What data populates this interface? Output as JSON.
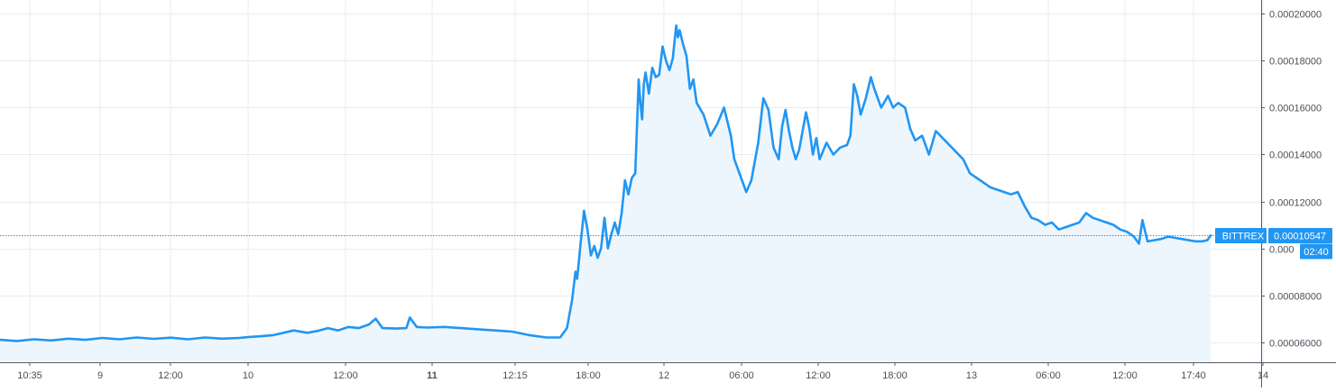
{
  "chart_data": {
    "type": "area",
    "title": "",
    "xlabel": "",
    "ylabel": "",
    "x_ticks": [
      {
        "label": "10:35",
        "bold": false
      },
      {
        "label": "9",
        "bold": false
      },
      {
        "label": "12:00",
        "bold": false
      },
      {
        "label": "10",
        "bold": false
      },
      {
        "label": "12:00",
        "bold": false
      },
      {
        "label": "11",
        "bold": true
      },
      {
        "label": "12:15",
        "bold": false
      },
      {
        "label": "18:00",
        "bold": false
      },
      {
        "label": "12",
        "bold": false
      },
      {
        "label": "06:00",
        "bold": false
      },
      {
        "label": "12:00",
        "bold": false
      },
      {
        "label": "18:00",
        "bold": false
      },
      {
        "label": "13",
        "bold": false
      },
      {
        "label": "06:00",
        "bold": false
      },
      {
        "label": "12:00",
        "bold": false
      },
      {
        "label": "17:40",
        "bold": false
      },
      {
        "label": "14",
        "bold": false
      }
    ],
    "y_ticks": [
      {
        "value": 6e-05,
        "label": "0.00006000"
      },
      {
        "value": 8e-05,
        "label": "0.00008000"
      },
      {
        "value": 0.0001,
        "label": "0.000"
      },
      {
        "value": 0.00012,
        "label": "0.00012000"
      },
      {
        "value": 0.00014,
        "label": "0.00014000"
      },
      {
        "value": 0.00016,
        "label": "0.00016000"
      },
      {
        "value": 0.00018,
        "label": "0.00018000"
      },
      {
        "value": 0.0002,
        "label": "0.00020000"
      }
    ],
    "ylim": [
      5.142e-05,
      0.00020588
    ],
    "grid": true,
    "series": [
      {
        "color": "#2196f3",
        "fill": "#eef6fd",
        "points": [
          [
            0.0,
            6.1e-05
          ],
          [
            0.5,
            6.05e-05
          ],
          [
            1.0,
            6.12e-05
          ],
          [
            1.5,
            6.07e-05
          ],
          [
            2.0,
            6.15e-05
          ],
          [
            2.5,
            6.1e-05
          ],
          [
            3.0,
            6.18e-05
          ],
          [
            3.5,
            6.12e-05
          ],
          [
            4.0,
            6.2e-05
          ],
          [
            4.5,
            6.14e-05
          ],
          [
            5.0,
            6.19e-05
          ],
          [
            5.5,
            6.12e-05
          ],
          [
            6.0,
            6.2e-05
          ],
          [
            6.5,
            6.15e-05
          ],
          [
            7.0,
            6.18e-05
          ],
          [
            7.3,
            6.22e-05
          ],
          [
            7.6,
            6.25e-05
          ],
          [
            8.0,
            6.3e-05
          ],
          [
            8.3,
            6.4e-05
          ],
          [
            8.6,
            6.5e-05
          ],
          [
            9.0,
            6.4e-05
          ],
          [
            9.3,
            6.48e-05
          ],
          [
            9.6,
            6.6e-05
          ],
          [
            9.9,
            6.5e-05
          ],
          [
            10.2,
            6.65e-05
          ],
          [
            10.5,
            6.6e-05
          ],
          [
            10.8,
            6.75e-05
          ],
          [
            11.0,
            7e-05
          ],
          [
            11.2,
            6.6e-05
          ],
          [
            11.6,
            6.58e-05
          ],
          [
            11.9,
            6.6e-05
          ],
          [
            12.0,
            7.05e-05
          ],
          [
            12.2,
            6.65e-05
          ],
          [
            12.5,
            6.62e-05
          ],
          [
            13.0,
            6.65e-05
          ],
          [
            13.5,
            6.6e-05
          ],
          [
            14.0,
            6.55e-05
          ],
          [
            14.5,
            6.5e-05
          ],
          [
            15.0,
            6.45e-05
          ],
          [
            15.5,
            6.3e-05
          ],
          [
            16.0,
            6.2e-05
          ],
          [
            16.4,
            6.2e-05
          ],
          [
            16.6,
            6.6e-05
          ],
          [
            16.75,
            7.8e-05
          ],
          [
            16.85,
            9e-05
          ],
          [
            16.9,
            8.7e-05
          ],
          [
            17.0,
            0.000102
          ],
          [
            17.05,
            0.000109
          ],
          [
            17.1,
            0.000116
          ],
          [
            17.2,
            0.000108
          ],
          [
            17.3,
            9.7e-05
          ],
          [
            17.4,
            0.000101
          ],
          [
            17.5,
            9.6e-05
          ],
          [
            17.6,
            0.0001
          ],
          [
            17.7,
            0.000113
          ],
          [
            17.8,
            0.0001
          ],
          [
            17.9,
            0.000106
          ],
          [
            18.0,
            0.000111
          ],
          [
            18.1,
            0.000106
          ],
          [
            18.2,
            0.000115
          ],
          [
            18.3,
            0.000129
          ],
          [
            18.4,
            0.000123
          ],
          [
            18.5,
            0.00013
          ],
          [
            18.6,
            0.000132
          ],
          [
            18.7,
            0.000172
          ],
          [
            18.75,
            0.000162
          ],
          [
            18.8,
            0.000155
          ],
          [
            18.85,
            0.00017
          ],
          [
            18.9,
            0.000175
          ],
          [
            19.0,
            0.000166
          ],
          [
            19.1,
            0.000177
          ],
          [
            19.2,
            0.000173
          ],
          [
            19.3,
            0.000174
          ],
          [
            19.4,
            0.000186
          ],
          [
            19.5,
            0.00018
          ],
          [
            19.6,
            0.000176
          ],
          [
            19.7,
            0.000181
          ],
          [
            19.8,
            0.000195
          ],
          [
            19.85,
            0.00019
          ],
          [
            19.9,
            0.000193
          ],
          [
            20.0,
            0.000187
          ],
          [
            20.1,
            0.000182
          ],
          [
            20.2,
            0.000168
          ],
          [
            20.3,
            0.000172
          ],
          [
            20.4,
            0.000162
          ],
          [
            20.6,
            0.000157
          ],
          [
            20.8,
            0.000148
          ],
          [
            21.0,
            0.000153
          ],
          [
            21.2,
            0.00016
          ],
          [
            21.4,
            0.000148
          ],
          [
            21.5,
            0.000138
          ],
          [
            21.7,
            0.00013
          ],
          [
            21.85,
            0.000124
          ],
          [
            22.0,
            0.000129
          ],
          [
            22.2,
            0.000145
          ],
          [
            22.35,
            0.000164
          ],
          [
            22.5,
            0.000159
          ],
          [
            22.65,
            0.000143
          ],
          [
            22.8,
            0.000138
          ],
          [
            22.9,
            0.000152
          ],
          [
            23.0,
            0.000159
          ],
          [
            23.1,
            0.00015
          ],
          [
            23.2,
            0.000143
          ],
          [
            23.3,
            0.000138
          ],
          [
            23.4,
            0.000142
          ],
          [
            23.5,
            0.00015
          ],
          [
            23.6,
            0.000158
          ],
          [
            23.7,
            0.000151
          ],
          [
            23.8,
            0.00014
          ],
          [
            23.9,
            0.000147
          ],
          [
            24.0,
            0.000138
          ],
          [
            24.2,
            0.000145
          ],
          [
            24.4,
            0.00014
          ],
          [
            24.6,
            0.000143
          ],
          [
            24.8,
            0.000144
          ],
          [
            24.9,
            0.000148
          ],
          [
            25.0,
            0.00017
          ],
          [
            25.1,
            0.000165
          ],
          [
            25.2,
            0.000157
          ],
          [
            25.35,
            0.000164
          ],
          [
            25.5,
            0.000173
          ],
          [
            25.6,
            0.000168
          ],
          [
            25.8,
            0.00016
          ],
          [
            26.0,
            0.000165
          ],
          [
            26.15,
            0.00016
          ],
          [
            26.3,
            0.000162
          ],
          [
            26.5,
            0.00016
          ],
          [
            26.65,
            0.000151
          ],
          [
            26.8,
            0.000146
          ],
          [
            27.0,
            0.000148
          ],
          [
            27.2,
            0.00014
          ],
          [
            27.4,
            0.00015
          ],
          [
            27.6,
            0.000147
          ],
          [
            27.8,
            0.000144
          ],
          [
            28.0,
            0.000141
          ],
          [
            28.2,
            0.000138
          ],
          [
            28.4,
            0.000132
          ],
          [
            28.6,
            0.00013
          ],
          [
            28.8,
            0.000128
          ],
          [
            29.0,
            0.000126
          ],
          [
            29.2,
            0.000125
          ],
          [
            29.4,
            0.000124
          ],
          [
            29.6,
            0.000123
          ],
          [
            29.8,
            0.000124
          ],
          [
            30.0,
            0.000118
          ],
          [
            30.2,
            0.000113
          ],
          [
            30.4,
            0.000112
          ],
          [
            30.6,
            0.00011
          ],
          [
            30.8,
            0.000111
          ],
          [
            31.0,
            0.000108
          ],
          [
            31.2,
            0.000109
          ],
          [
            31.4,
            0.00011
          ],
          [
            31.6,
            0.000111
          ],
          [
            31.8,
            0.000115
          ],
          [
            32.0,
            0.000113
          ],
          [
            32.2,
            0.000112
          ],
          [
            32.4,
            0.000111
          ],
          [
            32.6,
            0.00011
          ],
          [
            32.8,
            0.000108
          ],
          [
            33.0,
            0.000107
          ],
          [
            33.2,
            0.000105
          ],
          [
            33.35,
            0.000102
          ],
          [
            33.45,
            0.000112
          ],
          [
            33.6,
            0.000103
          ],
          [
            33.8,
            0.0001035
          ],
          [
            34.0,
            0.000104
          ],
          [
            34.2,
            0.000105
          ],
          [
            34.4,
            0.0001045
          ],
          [
            34.6,
            0.000104
          ],
          [
            34.8,
            0.0001035
          ],
          [
            35.0,
            0.000103
          ],
          [
            35.2,
            0.000103
          ],
          [
            35.35,
            0.0001035
          ],
          [
            35.45,
            0.0001055
          ]
        ]
      }
    ],
    "x_range": [
      0,
      37.8
    ],
    "last_price": {
      "value": 0.00010547,
      "exchange_label": "BITTREX",
      "price_label": "0.00010547",
      "countdown_label": "02:40",
      "color": "#2196f3"
    }
  },
  "colors": {
    "grid": "#e7ecf2",
    "axis": "#545b66",
    "tick_text": "#4a4f58",
    "line": "#2196f3",
    "fill": "#eef6fd"
  }
}
